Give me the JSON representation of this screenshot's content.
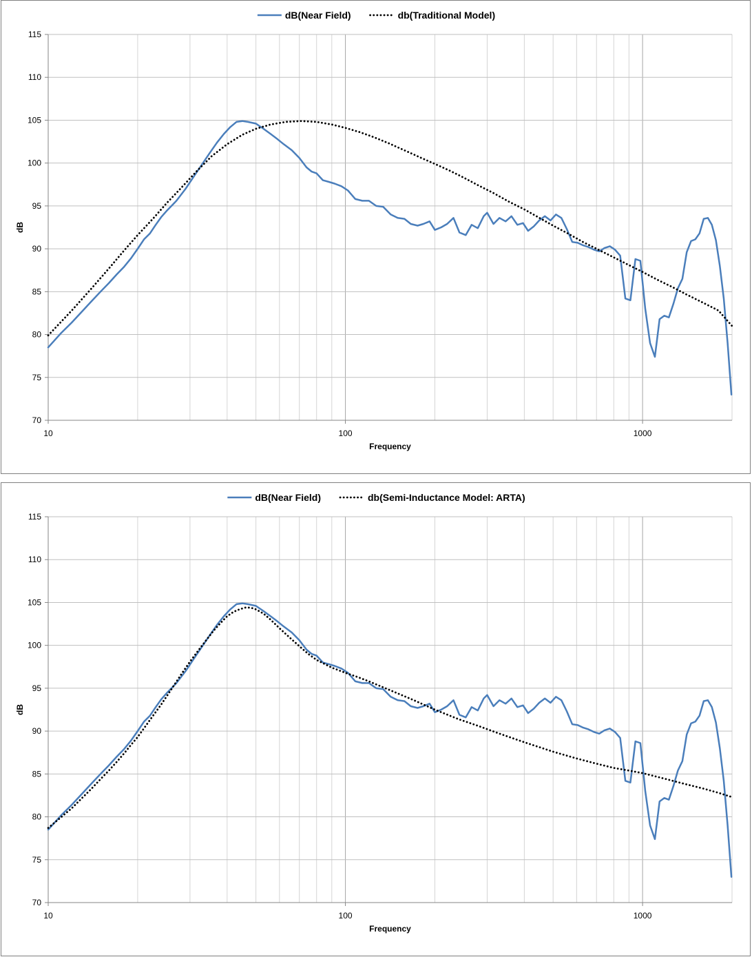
{
  "chart_data": [
    {
      "type": "line",
      "title": "",
      "xlabel": "Frequency",
      "ylabel": "dB",
      "x_scale": "log",
      "xlim": [
        10,
        2000
      ],
      "ylim": [
        70,
        115
      ],
      "y_ticks": [
        70,
        75,
        80,
        85,
        90,
        95,
        100,
        105,
        110,
        115
      ],
      "x_tick_labels": [
        "10",
        "100",
        "1000"
      ],
      "grid": true,
      "legend_position": "top-center",
      "colors": {
        "measured": "#4a7ebb",
        "model": "#000000"
      },
      "series": [
        {
          "name": "dB(Near Field)",
          "style": "solid",
          "x": [
            10,
            11,
            12,
            13,
            14,
            15,
            16,
            17,
            18,
            19,
            20,
            21,
            22,
            23,
            24,
            25,
            27,
            29,
            31,
            33,
            35,
            37,
            39,
            41,
            43,
            45,
            47,
            50,
            53,
            56,
            59,
            62,
            66,
            70,
            74,
            77,
            80,
            84,
            88,
            92,
            97,
            102,
            108,
            114,
            120,
            127,
            134,
            142,
            150,
            158,
            166,
            175,
            183,
            192,
            200,
            210,
            220,
            231,
            242,
            254,
            266,
            279,
            292,
            300,
            315,
            330,
            346,
            362,
            379,
            396,
            412,
            430,
            449,
            469,
            490,
            511,
            533,
            556,
            580,
            605,
            631,
            658,
            686,
            715,
            745,
            776,
            808,
            841,
            875,
            910,
            946,
            983,
            1021,
            1060,
            1100,
            1141,
            1183,
            1226,
            1270,
            1315,
            1361,
            1408,
            1456,
            1505,
            1555,
            1606,
            1658,
            1711,
            1765,
            1820,
            1876,
            1933,
            1990
          ],
          "y": [
            78.5,
            80.1,
            81.4,
            82.7,
            83.9,
            85.0,
            86.0,
            87.0,
            87.9,
            88.9,
            90.0,
            91.1,
            91.8,
            92.8,
            93.7,
            94.4,
            95.6,
            97.0,
            98.5,
            99.9,
            101.2,
            102.4,
            103.4,
            104.2,
            104.8,
            104.9,
            104.8,
            104.6,
            104.0,
            103.4,
            102.8,
            102.2,
            101.5,
            100.6,
            99.5,
            99.0,
            98.8,
            98.0,
            97.8,
            97.6,
            97.3,
            96.8,
            95.8,
            95.6,
            95.6,
            95.0,
            94.9,
            94.0,
            93.6,
            93.5,
            92.9,
            92.7,
            92.9,
            93.2,
            92.2,
            92.5,
            92.9,
            93.6,
            91.9,
            91.6,
            92.8,
            92.4,
            93.8,
            94.2,
            92.9,
            93.6,
            93.2,
            93.8,
            92.8,
            93.0,
            92.1,
            92.6,
            93.3,
            93.8,
            93.3,
            94.0,
            93.6,
            92.3,
            90.8,
            90.7,
            90.4,
            90.2,
            89.9,
            89.7,
            90.1,
            90.3,
            89.9,
            89.2,
            84.2,
            84.0,
            88.8,
            88.6,
            83.0,
            79.0,
            77.4,
            81.8,
            82.2,
            82.0,
            83.6,
            85.4,
            86.5,
            89.6,
            90.9,
            91.1,
            91.8,
            93.5,
            93.6,
            92.8,
            91.0,
            88.0,
            84.2,
            79.0,
            73.0
          ]
        },
        {
          "name": "db(Traditional Model)",
          "style": "dotted",
          "x": [
            10,
            12,
            14,
            16,
            18,
            20,
            22.5,
            25,
            28,
            31.5,
            35.5,
            40,
            45,
            50,
            56,
            63,
            71,
            80,
            90,
            100,
            112,
            125,
            140,
            160,
            180,
            200,
            225,
            250,
            280,
            315,
            355,
            400,
            450,
            500,
            560,
            630,
            710,
            800,
            900,
            1000,
            1120,
            1250,
            1400,
            1600,
            1800,
            2000
          ],
          "y": [
            79.9,
            82.8,
            85.4,
            87.7,
            89.8,
            91.6,
            93.5,
            95.3,
            97.1,
            99.0,
            100.8,
            102.2,
            103.3,
            104.0,
            104.5,
            104.8,
            104.9,
            104.8,
            104.5,
            104.1,
            103.6,
            103.0,
            102.3,
            101.4,
            100.6,
            99.9,
            99.1,
            98.3,
            97.4,
            96.5,
            95.5,
            94.6,
            93.6,
            92.7,
            91.8,
            90.8,
            89.9,
            89.0,
            88.1,
            87.3,
            86.4,
            85.6,
            84.7,
            83.7,
            82.8,
            81.0
          ]
        }
      ]
    },
    {
      "type": "line",
      "title": "",
      "xlabel": "Frequency",
      "ylabel": "dB",
      "x_scale": "log",
      "xlim": [
        10,
        2000
      ],
      "ylim": [
        70,
        115
      ],
      "y_ticks": [
        70,
        75,
        80,
        85,
        90,
        95,
        100,
        105,
        110,
        115
      ],
      "x_tick_labels": [
        "10",
        "100",
        "1000"
      ],
      "grid": true,
      "legend_position": "top-center",
      "colors": {
        "measured": "#4a7ebb",
        "model": "#000000"
      },
      "series": [
        {
          "name": "dB(Near Field)",
          "style": "solid",
          "x": [
            10,
            11,
            12,
            13,
            14,
            15,
            16,
            17,
            18,
            19,
            20,
            21,
            22,
            23,
            24,
            25,
            27,
            29,
            31,
            33,
            35,
            37,
            39,
            41,
            43,
            45,
            47,
            50,
            53,
            56,
            59,
            62,
            66,
            70,
            74,
            77,
            80,
            84,
            88,
            92,
            97,
            102,
            108,
            114,
            120,
            127,
            134,
            142,
            150,
            158,
            166,
            175,
            183,
            192,
            200,
            210,
            220,
            231,
            242,
            254,
            266,
            279,
            292,
            300,
            315,
            330,
            346,
            362,
            379,
            396,
            412,
            430,
            449,
            469,
            490,
            511,
            533,
            556,
            580,
            605,
            631,
            658,
            686,
            715,
            745,
            776,
            808,
            841,
            875,
            910,
            946,
            983,
            1021,
            1060,
            1100,
            1141,
            1183,
            1226,
            1270,
            1315,
            1361,
            1408,
            1456,
            1505,
            1555,
            1606,
            1658,
            1711,
            1765,
            1820,
            1876,
            1933,
            1990
          ],
          "y": [
            78.5,
            80.1,
            81.4,
            82.7,
            83.9,
            85.0,
            86.0,
            87.0,
            87.9,
            88.9,
            90.0,
            91.1,
            91.8,
            92.8,
            93.7,
            94.4,
            95.6,
            97.0,
            98.5,
            99.9,
            101.2,
            102.4,
            103.4,
            104.2,
            104.8,
            104.9,
            104.8,
            104.6,
            104.0,
            103.4,
            102.8,
            102.2,
            101.5,
            100.6,
            99.5,
            99.0,
            98.8,
            98.0,
            97.8,
            97.6,
            97.3,
            96.8,
            95.8,
            95.6,
            95.6,
            95.0,
            94.9,
            94.0,
            93.6,
            93.5,
            92.9,
            92.7,
            92.9,
            93.2,
            92.2,
            92.5,
            92.9,
            93.6,
            91.9,
            91.6,
            92.8,
            92.4,
            93.8,
            94.2,
            92.9,
            93.6,
            93.2,
            93.8,
            92.8,
            93.0,
            92.1,
            92.6,
            93.3,
            93.8,
            93.3,
            94.0,
            93.6,
            92.3,
            90.8,
            90.7,
            90.4,
            90.2,
            89.9,
            89.7,
            90.1,
            90.3,
            89.9,
            89.2,
            84.2,
            84.0,
            88.8,
            88.6,
            83.0,
            79.0,
            77.4,
            81.8,
            82.2,
            82.0,
            83.6,
            85.4,
            86.5,
            89.6,
            90.9,
            91.1,
            91.8,
            93.5,
            93.6,
            92.8,
            91.0,
            88.0,
            84.2,
            79.0,
            73.0
          ]
        },
        {
          "name": "db(Semi-Inductance Model: ARTA)",
          "style": "dotted",
          "x": [
            10,
            11,
            12,
            13,
            14,
            15,
            16,
            17,
            18,
            19,
            20,
            22,
            24,
            26,
            28,
            30,
            32,
            34,
            36,
            38,
            40,
            42,
            44,
            46,
            48,
            50,
            53,
            56,
            60,
            65,
            70,
            75,
            80,
            90,
            100,
            110,
            120,
            130,
            150,
            170,
            200,
            240,
            280,
            330,
            400,
            500,
            600,
            700,
            800,
            900,
            1000,
            1200,
            1400,
            1600,
            1800,
            2000
          ],
          "y": [
            78.7,
            79.9,
            81.0,
            82.2,
            83.3,
            84.4,
            85.4,
            86.4,
            87.4,
            88.4,
            89.3,
            91.3,
            93.1,
            94.9,
            96.6,
            98.1,
            99.4,
            100.6,
            101.7,
            102.6,
            103.4,
            103.9,
            104.2,
            104.4,
            104.4,
            104.2,
            103.7,
            103.0,
            102.0,
            100.9,
            99.9,
            99.0,
            98.3,
            97.4,
            96.8,
            96.3,
            95.8,
            95.3,
            94.4,
            93.6,
            92.5,
            91.4,
            90.6,
            89.7,
            88.7,
            87.6,
            86.8,
            86.2,
            85.7,
            85.4,
            85.1,
            84.4,
            83.8,
            83.3,
            82.8,
            82.3
          ]
        }
      ]
    }
  ]
}
